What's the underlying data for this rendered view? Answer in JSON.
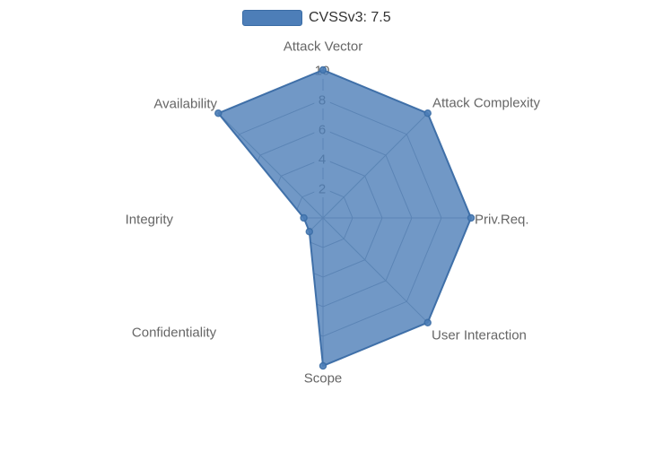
{
  "legend": {
    "label": "CVSSv3: 7.5"
  },
  "colors": {
    "series_fill": "#4d7eb8",
    "series_fill_opacity": 0.8,
    "series_line": "#3a6ca5",
    "grid_line": "#6b7b8d",
    "tick_bg": "#ffffff",
    "tick_text": "#666666",
    "axis_label_text": "#666666",
    "legend_text": "#333333"
  },
  "chart_data": {
    "type": "radar",
    "title": "CVSSv3: 7.5",
    "indicators": [
      "Attack Vector",
      "Attack Complexity",
      "Priv.Req.",
      "User Interaction",
      "Scope",
      "Confidentiality",
      "Integrity",
      "Availability"
    ],
    "max": 10,
    "ticks": [
      2,
      4,
      6,
      8,
      10
    ],
    "start_axis": "top",
    "direction": "clockwise",
    "legend_position": "top-center",
    "grid_shape": "polygon",
    "series": [
      {
        "name": "CVSSv3: 7.5",
        "values": [
          10,
          10,
          10,
          10,
          10,
          1.3,
          1.3,
          10
        ]
      }
    ]
  }
}
